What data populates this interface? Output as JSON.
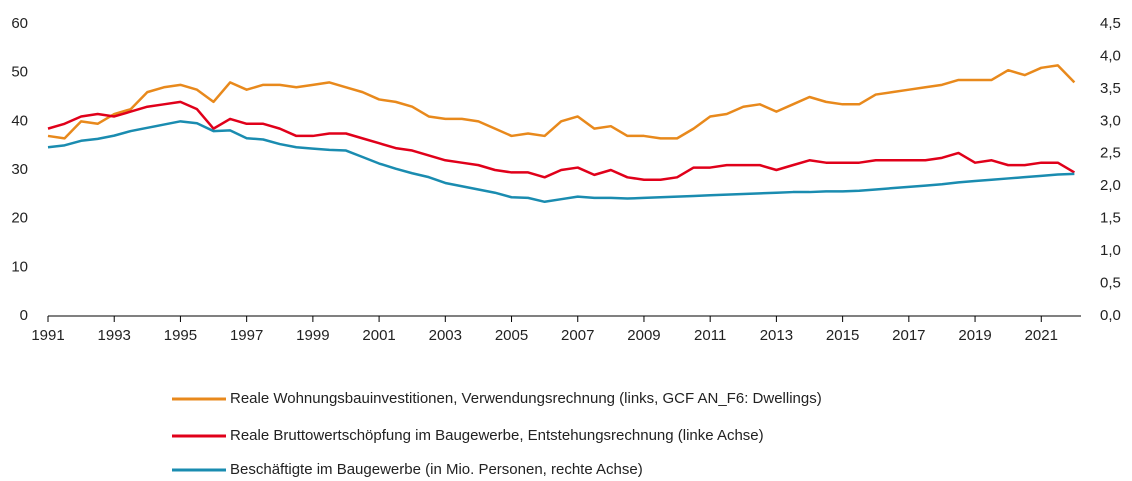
{
  "chart_data": {
    "type": "line",
    "x": [
      1991,
      1991.5,
      1992,
      1992.5,
      1993,
      1993.5,
      1994,
      1994.5,
      1995,
      1995.5,
      1996,
      1996.5,
      1997,
      1997.5,
      1998,
      1998.5,
      1999,
      1999.5,
      2000,
      2000.5,
      2001,
      2001.5,
      2002,
      2002.5,
      2003,
      2003.5,
      2004,
      2004.5,
      2005,
      2005.5,
      2006,
      2006.5,
      2007,
      2007.5,
      2008,
      2008.5,
      2009,
      2009.5,
      2010,
      2010.5,
      2011,
      2011.5,
      2012,
      2012.5,
      2013,
      2013.5,
      2014,
      2014.5,
      2015,
      2015.5,
      2016,
      2016.5,
      2017,
      2017.5,
      2018,
      2018.5,
      2019,
      2019.5,
      2020,
      2020.5,
      2021,
      2021.5,
      2022
    ],
    "series": [
      {
        "name": "Reale Wohnungsbauinvestitionen, Verwendungsrechnung (links, GCF AN_F6: Dwellings)",
        "color": "#e8891c",
        "axis": "y",
        "values": [
          37,
          36.5,
          40,
          39.5,
          41.5,
          42.5,
          46,
          47,
          47.5,
          46.5,
          44,
          48,
          46.5,
          47.5,
          47.5,
          47,
          47.5,
          48,
          47,
          46,
          44.5,
          44,
          43,
          41,
          40.5,
          40.5,
          40,
          38.5,
          37,
          37.5,
          37,
          40,
          41,
          38.5,
          39,
          37,
          37,
          36.5,
          36.5,
          38.5,
          41,
          41.5,
          43,
          43.5,
          42,
          43.5,
          45,
          44,
          43.5,
          43.5,
          45.5,
          46,
          46.5,
          47,
          47.5,
          48.5,
          48.5,
          48.5,
          50.5,
          49.5,
          51,
          51.5,
          48
        ]
      },
      {
        "name": "Reale Bruttowertschöpfung im Baugewerbe, Entstehungsrechnung (linke Achse)",
        "color": "#e0001a",
        "axis": "y",
        "values": [
          38.5,
          39.5,
          41,
          41.5,
          41,
          42,
          43,
          43.5,
          44,
          42.5,
          38.5,
          40.5,
          39.5,
          39.5,
          38.5,
          37,
          37,
          37.5,
          37.5,
          36.5,
          35.5,
          34.5,
          34,
          33,
          32,
          31.5,
          31,
          30,
          29.5,
          29.5,
          28.5,
          30,
          30.5,
          29,
          30,
          28.5,
          28,
          28,
          28.5,
          30.5,
          30.5,
          31,
          31,
          31,
          30,
          31,
          32,
          31.5,
          31.5,
          31.5,
          32,
          32,
          32,
          32,
          32.5,
          33.5,
          31.5,
          32,
          31,
          31,
          31.5,
          31.5,
          29.5
        ]
      },
      {
        "name": "Beschäftigte im Baugewerbe (in Mio. Personen, rechte Achse)",
        "color": "#1a8cb0",
        "axis": "y2",
        "values": [
          2.6,
          2.63,
          2.7,
          2.73,
          2.78,
          2.85,
          2.9,
          2.95,
          3.0,
          2.97,
          2.85,
          2.86,
          2.74,
          2.72,
          2.65,
          2.6,
          2.58,
          2.56,
          2.55,
          2.45,
          2.35,
          2.27,
          2.2,
          2.14,
          2.05,
          2.0,
          1.95,
          1.9,
          1.83,
          1.82,
          1.76,
          1.8,
          1.84,
          1.82,
          1.82,
          1.81,
          1.82,
          1.83,
          1.84,
          1.85,
          1.86,
          1.87,
          1.88,
          1.89,
          1.9,
          1.91,
          1.91,
          1.92,
          1.92,
          1.93,
          1.95,
          1.97,
          1.99,
          2.01,
          2.03,
          2.06,
          2.08,
          2.1,
          2.12,
          2.14,
          2.16,
          2.18,
          2.19
        ]
      }
    ],
    "xlim": [
      1991,
      2022.2
    ],
    "xticks": [
      1991,
      1993,
      1995,
      1997,
      1999,
      2001,
      2003,
      2005,
      2007,
      2009,
      2011,
      2013,
      2015,
      2017,
      2019,
      2021
    ],
    "ylim": [
      0,
      60
    ],
    "yticks": [
      0,
      10,
      20,
      30,
      40,
      50,
      60
    ],
    "y2lim": [
      0,
      4.5
    ],
    "y2ticks": [
      {
        "value": 0,
        "label": "0,0"
      },
      {
        "value": 0.5,
        "label": "0,5"
      },
      {
        "value": 1,
        "label": "1,0"
      },
      {
        "value": 1.5,
        "label": "1,5"
      },
      {
        "value": 2,
        "label": "2,0"
      },
      {
        "value": 2.5,
        "label": "2,5"
      },
      {
        "value": 3,
        "label": "3,0"
      },
      {
        "value": 3.5,
        "label": "3,5"
      },
      {
        "value": 4,
        "label": "4,0"
      },
      {
        "value": 4.5,
        "label": "4,5"
      }
    ],
    "grid": false,
    "legend": "bottom"
  }
}
